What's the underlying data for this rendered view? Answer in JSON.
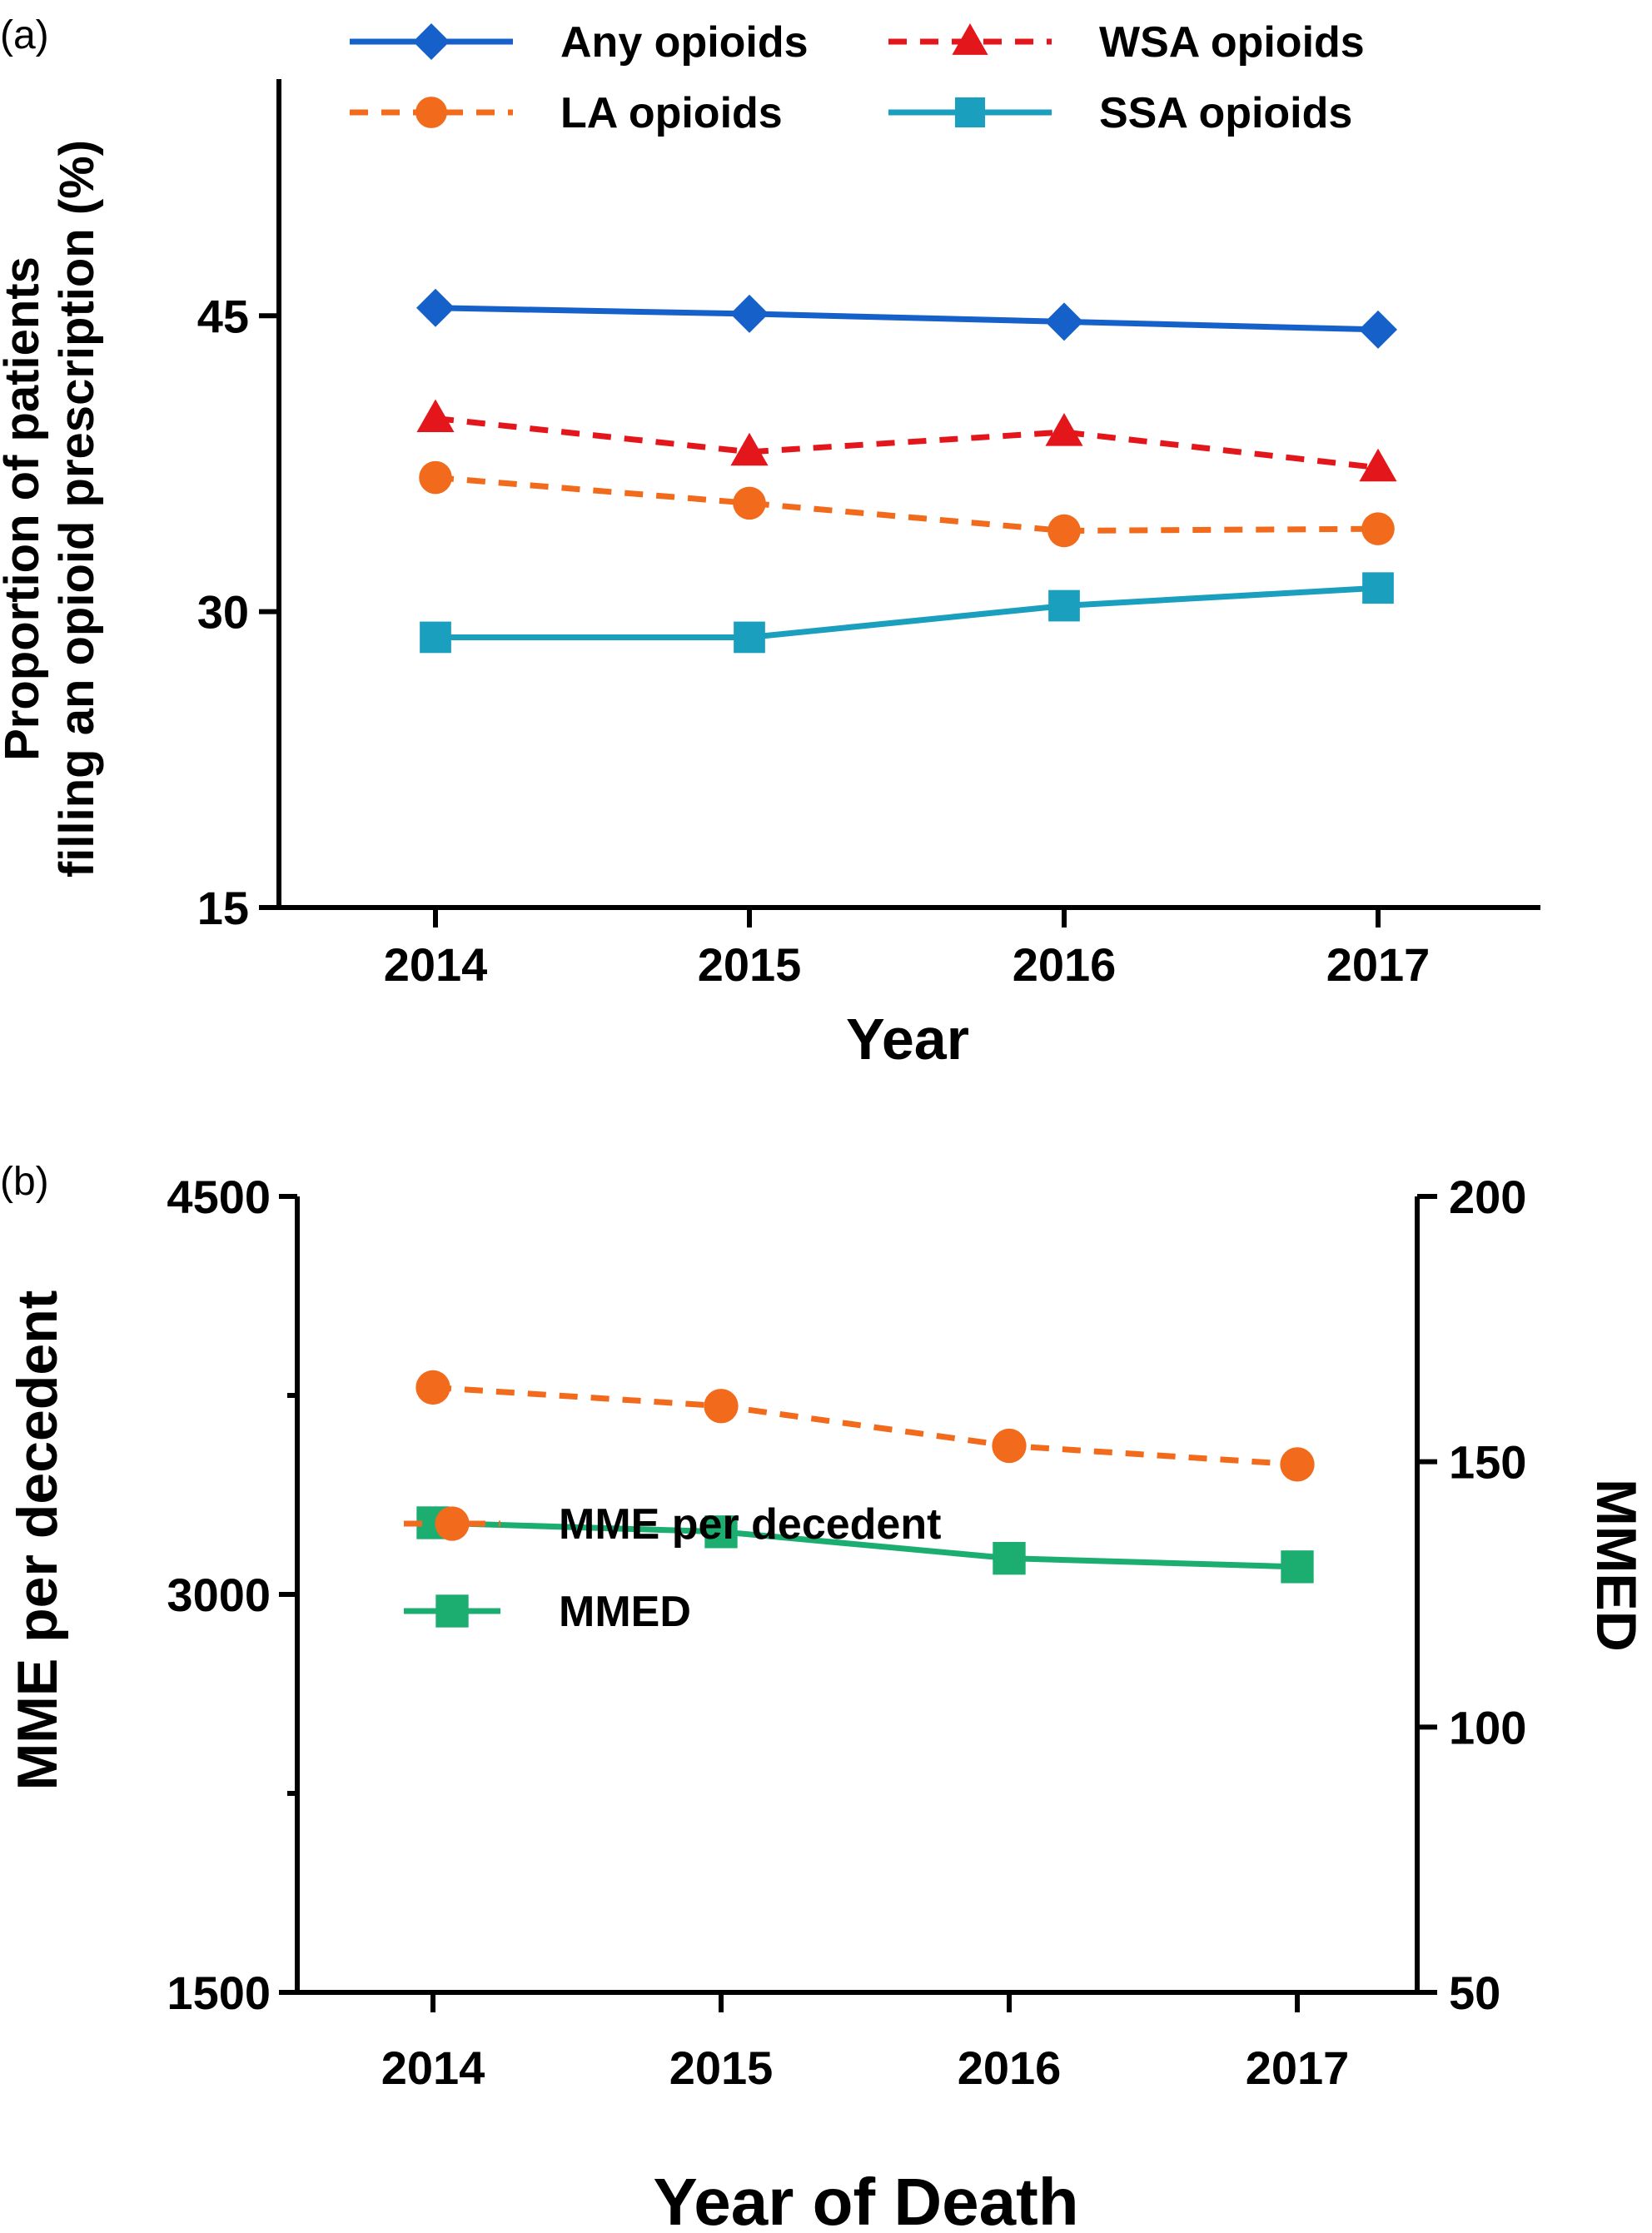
{
  "chart_data": [
    {
      "panel_label": "(a)",
      "type": "line",
      "xlabel": "Year",
      "ylabel_lines": [
        "Proportion of patients",
        "filling an opioid prescription (%)"
      ],
      "x": [
        2014,
        2015,
        2016,
        2017
      ],
      "x_tick_labels": [
        "2014",
        "2015",
        "2016",
        "2017"
      ],
      "ylim": [
        15,
        57
      ],
      "y_ticks": [
        15,
        30,
        45
      ],
      "y_tick_labels": [
        "15",
        "30",
        "45"
      ],
      "grid": false,
      "legend_placement": "top",
      "series": [
        {
          "name": "Any opioids",
          "values": [
            45.4,
            45.1,
            44.7,
            44.3
          ],
          "color": "#1560c9",
          "dash": "solid",
          "marker": "diamond"
        },
        {
          "name": "WSA opioids",
          "values": [
            39.8,
            38.1,
            39.1,
            37.3
          ],
          "color": "#e3161b",
          "dash": "dashed",
          "marker": "triangle"
        },
        {
          "name": "LA opioids",
          "values": [
            36.8,
            35.5,
            34.1,
            34.2
          ],
          "color": "#f26a1b",
          "dash": "dashed",
          "marker": "circle"
        },
        {
          "name": "SSA opioids",
          "values": [
            28.7,
            28.7,
            30.3,
            31.2
          ],
          "color": "#1b9fbe",
          "dash": "solid",
          "marker": "square"
        }
      ],
      "legend_order": [
        "Any opioids",
        "WSA opioids",
        "LA opioids",
        "SSA opioids"
      ]
    },
    {
      "panel_label": "(b)",
      "type": "line",
      "xlabel": "Year of Death",
      "ylabel_left": "MME per decedent",
      "ylabel_right": "MMED",
      "x": [
        2014,
        2015,
        2016,
        2017
      ],
      "x_tick_labels": [
        "2014",
        "2015",
        "2016",
        "2017"
      ],
      "ylim_left": [
        1500,
        4500
      ],
      "y_ticks_left": [
        1500,
        3000,
        4500
      ],
      "y_tick_labels_left": [
        "1500",
        "3000",
        "4500"
      ],
      "ylim_right": [
        50,
        200
      ],
      "y_ticks_right": [
        50,
        100,
        150,
        200
      ],
      "y_tick_labels_right": [
        "50",
        "100",
        "150",
        "200"
      ],
      "grid": false,
      "legend_placement": "lower-left",
      "series": [
        {
          "name": "MME per decedent",
          "axis": "left",
          "values": [
            3780,
            3710,
            3560,
            3490
          ],
          "color": "#f26a1b",
          "dash": "dashed",
          "marker": "circle"
        },
        {
          "name": "MMED",
          "axis": "right",
          "values": [
            138.5,
            136.8,
            131.8,
            130.2
          ],
          "color": "#1cae71",
          "dash": "solid",
          "marker": "square"
        }
      ]
    }
  ]
}
